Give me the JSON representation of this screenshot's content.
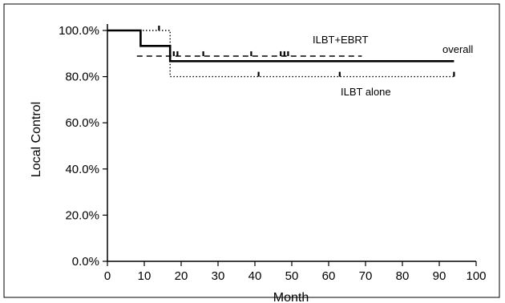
{
  "chart_data": {
    "type": "line",
    "title": "",
    "xlabel": "Month",
    "ylabel": "Local Control",
    "xlim": [
      0,
      100
    ],
    "ylim": [
      0,
      100
    ],
    "x_ticks": [
      0,
      10,
      20,
      30,
      40,
      50,
      60,
      70,
      80,
      90,
      100
    ],
    "y_ticks": [
      0,
      20,
      40,
      60,
      80,
      100
    ],
    "y_tick_labels": [
      "0.0%",
      "20.0%",
      "40.0%",
      "60.0%",
      "80.0%",
      "100.0%"
    ],
    "grid": false,
    "series": [
      {
        "name": "overall",
        "style": "solid",
        "color": "#000000",
        "steps": [
          [
            0,
            100
          ],
          [
            9,
            100
          ],
          [
            9,
            93.3
          ],
          [
            17,
            93.3
          ],
          [
            17,
            86.7
          ],
          [
            94,
            86.7
          ]
        ],
        "censored": []
      },
      {
        "name": "ILBT+EBRT",
        "style": "dashed",
        "color": "#000000",
        "steps": [
          [
            8,
            88.9
          ],
          [
            17,
            88.9
          ],
          [
            17,
            88.9
          ],
          [
            69,
            88.9
          ]
        ],
        "censored": [
          18,
          19,
          26,
          39,
          47,
          48,
          49
        ]
      },
      {
        "name": "ILBT alone",
        "style": "dotted",
        "color": "#000000",
        "steps": [
          [
            0,
            100
          ],
          [
            17,
            100
          ],
          [
            17,
            80
          ],
          [
            94,
            80
          ]
        ],
        "censored": [
          14,
          41,
          63,
          94
        ]
      }
    ]
  }
}
